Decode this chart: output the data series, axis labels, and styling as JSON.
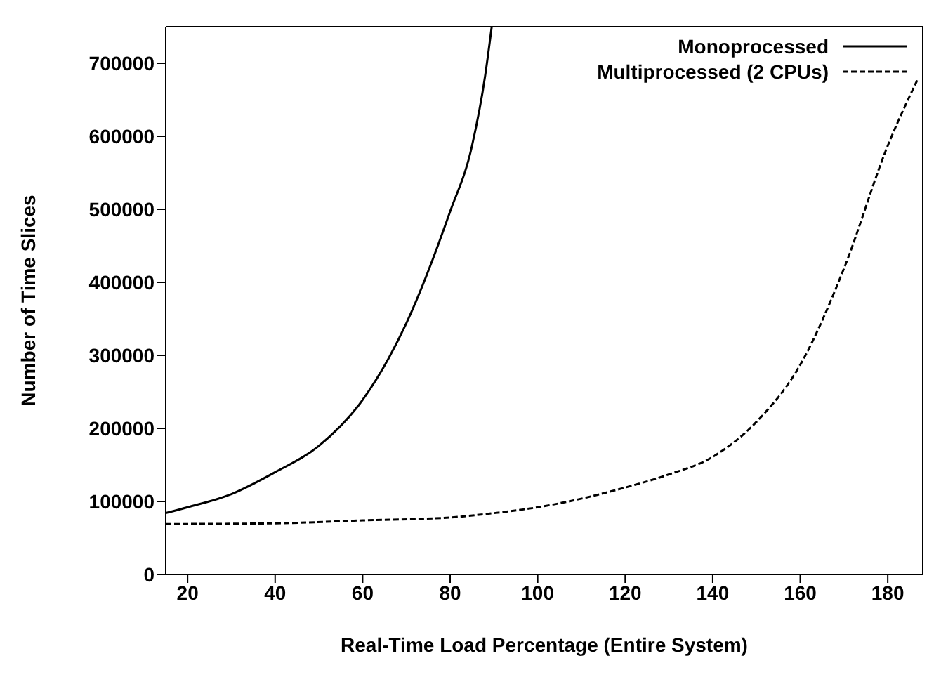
{
  "chart_data": {
    "type": "line",
    "xlabel": "Real-Time Load Percentage (Entire System)",
    "ylabel": "Number of Time Slices",
    "xlim": [
      15,
      188
    ],
    "xticks": [
      20,
      40,
      60,
      80,
      100,
      120,
      140,
      160,
      180
    ],
    "ylim": [
      0,
      750000
    ],
    "yticks": [
      0,
      100000,
      200000,
      300000,
      400000,
      500000,
      600000,
      700000
    ],
    "legend": "top right",
    "grid": false,
    "marker": "none",
    "series": [
      {
        "name": "Monoprocessed",
        "color": "#000000",
        "line_style": "solid",
        "x": [
          15,
          20,
          30,
          40,
          50,
          60,
          70,
          80,
          85,
          88,
          89.5
        ],
        "values": [
          84000,
          92000,
          110000,
          140000,
          176000,
          239000,
          344000,
          497000,
          587000,
          683000,
          750000
        ]
      },
      {
        "name": "Multiprocessed (2 CPUs)",
        "color": "#000000",
        "line_style": "dashed",
        "x": [
          15,
          40,
          60,
          80,
          90,
          100,
          120,
          130,
          140,
          150,
          160,
          170,
          180,
          187
        ],
        "values": [
          69000,
          70000,
          74000,
          78000,
          84000,
          92000,
          119000,
          137000,
          161000,
          209000,
          287000,
          419000,
          587000,
          680000
        ]
      }
    ]
  }
}
